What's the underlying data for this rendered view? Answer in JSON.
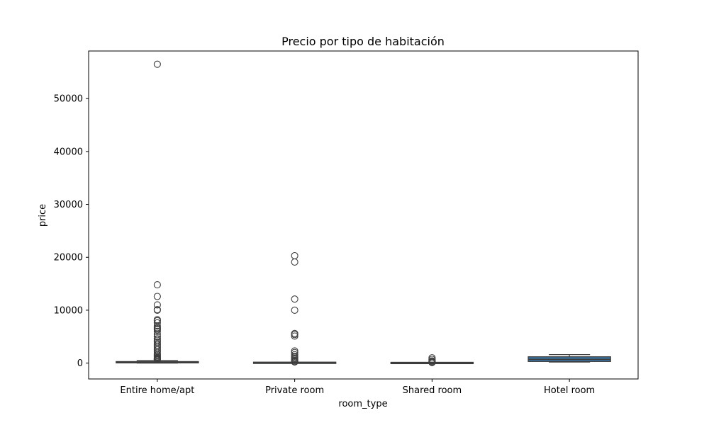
{
  "chart_data": {
    "type": "box",
    "title": "Precio por tipo de habitación",
    "xlabel": "room_type",
    "ylabel": "price",
    "ylim": [
      -3000,
      59000
    ],
    "yticks": [
      0,
      10000,
      20000,
      30000,
      40000,
      50000
    ],
    "categories": [
      "Entire home/apt",
      "Private room",
      "Shared room",
      "Hotel room"
    ],
    "box_color": "#3a6f9a",
    "boxes": [
      {
        "category": "Entire home/apt",
        "whisker_low": 0,
        "q1": 90,
        "median": 140,
        "q3": 230,
        "whisker_high": 500,
        "outliers": [
          56500,
          14800,
          12600,
          11000,
          10100,
          10000,
          8200,
          8000,
          7600,
          7000,
          6700,
          6500,
          6300,
          6000,
          5500,
          5000,
          4600,
          4300,
          4000,
          3700,
          3400,
          3100,
          2800,
          2500,
          2200,
          1900,
          1600,
          1400,
          1200,
          1000,
          900,
          800,
          700,
          600
        ]
      },
      {
        "category": "Private room",
        "whisker_low": 0,
        "q1": 30,
        "median": 50,
        "q3": 80,
        "whisker_high": 150,
        "outliers": [
          20300,
          19100,
          12100,
          10000,
          5600,
          5400,
          5100,
          2300,
          2000,
          1600,
          1300,
          1100,
          900,
          700,
          500,
          300,
          200
        ]
      },
      {
        "category": "Shared room",
        "whisker_low": 0,
        "q1": 10,
        "median": 20,
        "q3": 35,
        "whisker_high": 60,
        "outliers": [
          1000,
          700,
          400,
          250,
          150,
          100
        ]
      },
      {
        "category": "Hotel room",
        "whisker_low": 200,
        "q1": 300,
        "median": 700,
        "q3": 1200,
        "whisker_high": 1600,
        "outliers": []
      }
    ]
  }
}
